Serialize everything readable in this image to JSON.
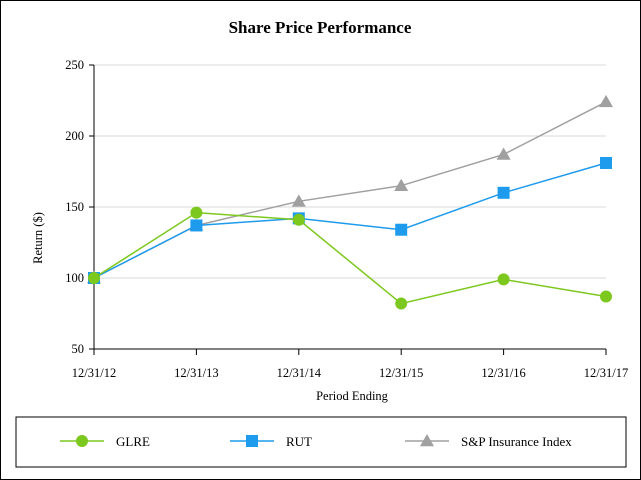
{
  "chart_data": {
    "type": "line",
    "title": "Share Price Performance",
    "xlabel": "Period Ending",
    "ylabel": "Return ($)",
    "categories": [
      "12/31/12",
      "12/31/13",
      "12/31/14",
      "12/31/15",
      "12/31/16",
      "12/31/17"
    ],
    "ylim": [
      50,
      250
    ],
    "yticks": [
      50,
      100,
      150,
      200,
      250
    ],
    "grid": true,
    "legend_position": "bottom",
    "series": [
      {
        "name": "GLRE",
        "marker": "circle",
        "color": "#7dc81e",
        "values": [
          100,
          146,
          141,
          82,
          99,
          87
        ]
      },
      {
        "name": "RUT",
        "marker": "square",
        "color": "#1e9bec",
        "values": [
          100,
          137,
          142,
          134,
          160,
          181
        ]
      },
      {
        "name": "S&P Insurance Index",
        "marker": "triangle",
        "color": "#a0a0a0",
        "values": [
          100,
          137,
          154,
          165,
          187,
          224
        ]
      }
    ]
  }
}
